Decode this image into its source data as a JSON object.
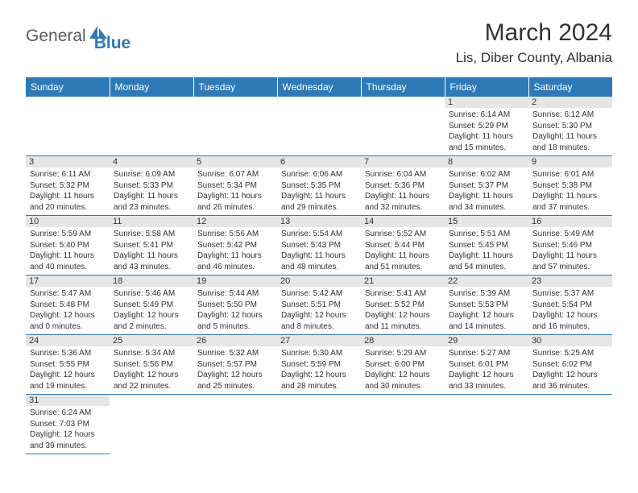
{
  "logo": {
    "text1": "General",
    "text2": "Blue"
  },
  "title": "March 2024",
  "location": "Lis, Diber County, Albania",
  "colors": {
    "header_bg": "#2e79b8",
    "header_text": "#ffffff",
    "daynum_bg": "#e6e6e6",
    "border": "#2e79b8",
    "text": "#333333",
    "logo_gray": "#5a5a5a",
    "logo_blue": "#2e79b8"
  },
  "weekdays": [
    "Sunday",
    "Monday",
    "Tuesday",
    "Wednesday",
    "Thursday",
    "Friday",
    "Saturday"
  ],
  "weeks": [
    [
      {
        "n": "",
        "sr": "",
        "ss": "",
        "dl": ""
      },
      {
        "n": "",
        "sr": "",
        "ss": "",
        "dl": ""
      },
      {
        "n": "",
        "sr": "",
        "ss": "",
        "dl": ""
      },
      {
        "n": "",
        "sr": "",
        "ss": "",
        "dl": ""
      },
      {
        "n": "",
        "sr": "",
        "ss": "",
        "dl": ""
      },
      {
        "n": "1",
        "sr": "Sunrise: 6:14 AM",
        "ss": "Sunset: 5:29 PM",
        "dl": "Daylight: 11 hours and 15 minutes."
      },
      {
        "n": "2",
        "sr": "Sunrise: 6:12 AM",
        "ss": "Sunset: 5:30 PM",
        "dl": "Daylight: 11 hours and 18 minutes."
      }
    ],
    [
      {
        "n": "3",
        "sr": "Sunrise: 6:11 AM",
        "ss": "Sunset: 5:32 PM",
        "dl": "Daylight: 11 hours and 20 minutes."
      },
      {
        "n": "4",
        "sr": "Sunrise: 6:09 AM",
        "ss": "Sunset: 5:33 PM",
        "dl": "Daylight: 11 hours and 23 minutes."
      },
      {
        "n": "5",
        "sr": "Sunrise: 6:07 AM",
        "ss": "Sunset: 5:34 PM",
        "dl": "Daylight: 11 hours and 26 minutes."
      },
      {
        "n": "6",
        "sr": "Sunrise: 6:06 AM",
        "ss": "Sunset: 5:35 PM",
        "dl": "Daylight: 11 hours and 29 minutes."
      },
      {
        "n": "7",
        "sr": "Sunrise: 6:04 AM",
        "ss": "Sunset: 5:36 PM",
        "dl": "Daylight: 11 hours and 32 minutes."
      },
      {
        "n": "8",
        "sr": "Sunrise: 6:02 AM",
        "ss": "Sunset: 5:37 PM",
        "dl": "Daylight: 11 hours and 34 minutes."
      },
      {
        "n": "9",
        "sr": "Sunrise: 6:01 AM",
        "ss": "Sunset: 5:38 PM",
        "dl": "Daylight: 11 hours and 37 minutes."
      }
    ],
    [
      {
        "n": "10",
        "sr": "Sunrise: 5:59 AM",
        "ss": "Sunset: 5:40 PM",
        "dl": "Daylight: 11 hours and 40 minutes."
      },
      {
        "n": "11",
        "sr": "Sunrise: 5:58 AM",
        "ss": "Sunset: 5:41 PM",
        "dl": "Daylight: 11 hours and 43 minutes."
      },
      {
        "n": "12",
        "sr": "Sunrise: 5:56 AM",
        "ss": "Sunset: 5:42 PM",
        "dl": "Daylight: 11 hours and 46 minutes."
      },
      {
        "n": "13",
        "sr": "Sunrise: 5:54 AM",
        "ss": "Sunset: 5:43 PM",
        "dl": "Daylight: 11 hours and 48 minutes."
      },
      {
        "n": "14",
        "sr": "Sunrise: 5:52 AM",
        "ss": "Sunset: 5:44 PM",
        "dl": "Daylight: 11 hours and 51 minutes."
      },
      {
        "n": "15",
        "sr": "Sunrise: 5:51 AM",
        "ss": "Sunset: 5:45 PM",
        "dl": "Daylight: 11 hours and 54 minutes."
      },
      {
        "n": "16",
        "sr": "Sunrise: 5:49 AM",
        "ss": "Sunset: 5:46 PM",
        "dl": "Daylight: 11 hours and 57 minutes."
      }
    ],
    [
      {
        "n": "17",
        "sr": "Sunrise: 5:47 AM",
        "ss": "Sunset: 5:48 PM",
        "dl": "Daylight: 12 hours and 0 minutes."
      },
      {
        "n": "18",
        "sr": "Sunrise: 5:46 AM",
        "ss": "Sunset: 5:49 PM",
        "dl": "Daylight: 12 hours and 2 minutes."
      },
      {
        "n": "19",
        "sr": "Sunrise: 5:44 AM",
        "ss": "Sunset: 5:50 PM",
        "dl": "Daylight: 12 hours and 5 minutes."
      },
      {
        "n": "20",
        "sr": "Sunrise: 5:42 AM",
        "ss": "Sunset: 5:51 PM",
        "dl": "Daylight: 12 hours and 8 minutes."
      },
      {
        "n": "21",
        "sr": "Sunrise: 5:41 AM",
        "ss": "Sunset: 5:52 PM",
        "dl": "Daylight: 12 hours and 11 minutes."
      },
      {
        "n": "22",
        "sr": "Sunrise: 5:39 AM",
        "ss": "Sunset: 5:53 PM",
        "dl": "Daylight: 12 hours and 14 minutes."
      },
      {
        "n": "23",
        "sr": "Sunrise: 5:37 AM",
        "ss": "Sunset: 5:54 PM",
        "dl": "Daylight: 12 hours and 16 minutes."
      }
    ],
    [
      {
        "n": "24",
        "sr": "Sunrise: 5:36 AM",
        "ss": "Sunset: 5:55 PM",
        "dl": "Daylight: 12 hours and 19 minutes."
      },
      {
        "n": "25",
        "sr": "Sunrise: 5:34 AM",
        "ss": "Sunset: 5:56 PM",
        "dl": "Daylight: 12 hours and 22 minutes."
      },
      {
        "n": "26",
        "sr": "Sunrise: 5:32 AM",
        "ss": "Sunset: 5:57 PM",
        "dl": "Daylight: 12 hours and 25 minutes."
      },
      {
        "n": "27",
        "sr": "Sunrise: 5:30 AM",
        "ss": "Sunset: 5:59 PM",
        "dl": "Daylight: 12 hours and 28 minutes."
      },
      {
        "n": "28",
        "sr": "Sunrise: 5:29 AM",
        "ss": "Sunset: 6:00 PM",
        "dl": "Daylight: 12 hours and 30 minutes."
      },
      {
        "n": "29",
        "sr": "Sunrise: 5:27 AM",
        "ss": "Sunset: 6:01 PM",
        "dl": "Daylight: 12 hours and 33 minutes."
      },
      {
        "n": "30",
        "sr": "Sunrise: 5:25 AM",
        "ss": "Sunset: 6:02 PM",
        "dl": "Daylight: 12 hours and 36 minutes."
      }
    ],
    [
      {
        "n": "31",
        "sr": "Sunrise: 6:24 AM",
        "ss": "Sunset: 7:03 PM",
        "dl": "Daylight: 12 hours and 39 minutes."
      },
      {
        "n": "",
        "sr": "",
        "ss": "",
        "dl": ""
      },
      {
        "n": "",
        "sr": "",
        "ss": "",
        "dl": ""
      },
      {
        "n": "",
        "sr": "",
        "ss": "",
        "dl": ""
      },
      {
        "n": "",
        "sr": "",
        "ss": "",
        "dl": ""
      },
      {
        "n": "",
        "sr": "",
        "ss": "",
        "dl": ""
      },
      {
        "n": "",
        "sr": "",
        "ss": "",
        "dl": ""
      }
    ]
  ]
}
